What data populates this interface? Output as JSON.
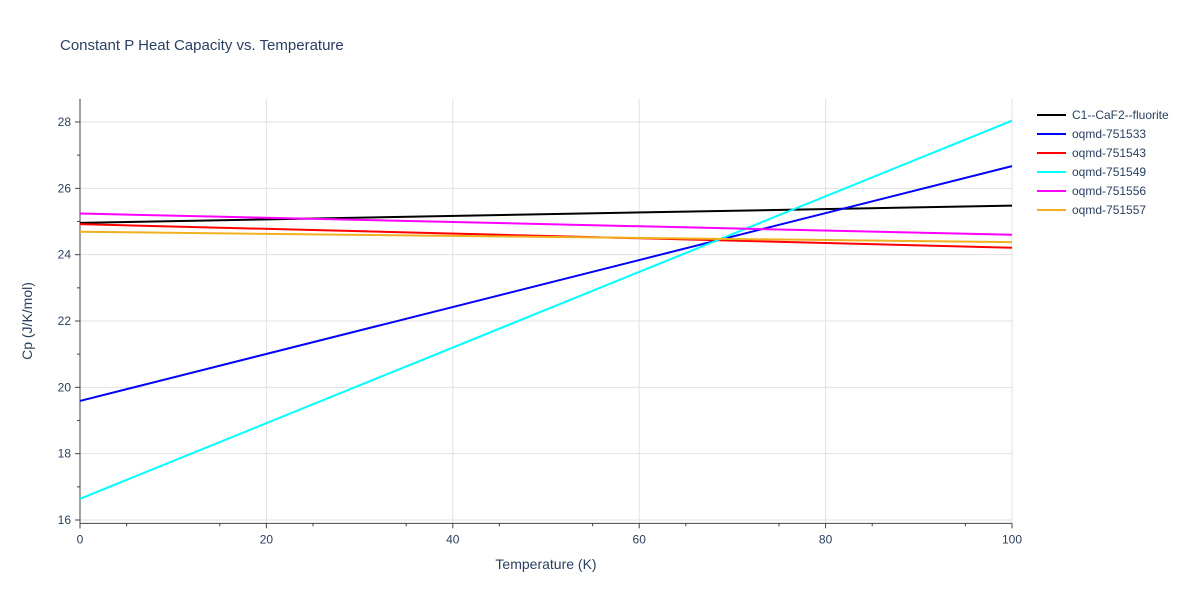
{
  "chart_data": {
    "type": "line",
    "title": "Constant P Heat Capacity vs. Temperature",
    "xlabel": "Temperature (K)",
    "ylabel": "Cp (J/K/mol)",
    "xlim": [
      0,
      100
    ],
    "ylim": [
      15.9,
      28.7
    ],
    "xticks": [
      0,
      20,
      40,
      60,
      80,
      100
    ],
    "yticks": [
      16,
      18,
      20,
      22,
      24,
      26,
      28
    ],
    "grid": true,
    "legend_position": "right",
    "series": [
      {
        "name": "C1--CaF2--fluorite",
        "color": "#000000",
        "x": [
          0,
          100
        ],
        "y": [
          24.96,
          25.48
        ]
      },
      {
        "name": "oqmd-751533",
        "color": "#0000ff",
        "x": [
          0,
          100
        ],
        "y": [
          19.59,
          26.67
        ]
      },
      {
        "name": "oqmd-751543",
        "color": "#ff0000",
        "x": [
          0,
          100
        ],
        "y": [
          24.92,
          24.21
        ]
      },
      {
        "name": "oqmd-751549",
        "color": "#00ffff",
        "x": [
          0,
          100
        ],
        "y": [
          16.64,
          28.04
        ]
      },
      {
        "name": "oqmd-751556",
        "color": "#ff00ff",
        "x": [
          0,
          100
        ],
        "y": [
          25.24,
          24.6
        ]
      },
      {
        "name": "oqmd-751557",
        "color": "#f0b020",
        "x": [
          0,
          100
        ],
        "y": [
          24.69,
          24.38
        ]
      }
    ]
  }
}
